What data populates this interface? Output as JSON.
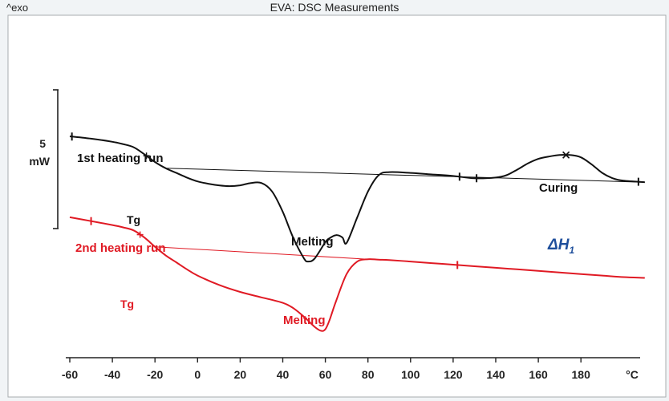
{
  "chart_data": {
    "type": "line",
    "title": "EVA: DSC Measurements",
    "corner_label": "^exo",
    "xlabel": "°C",
    "xlim": [
      -60,
      210
    ],
    "x_ticks": [
      -60,
      -40,
      -20,
      0,
      20,
      40,
      60,
      80,
      100,
      120,
      140,
      160,
      180
    ],
    "scale_bar": {
      "value": "5",
      "unit": "mW"
    },
    "series": [
      {
        "name": "1st heating run",
        "color": "#111111",
        "x": [
          -60,
          -50,
          -40,
          -35,
          -30,
          -25,
          -20,
          -15,
          -10,
          -5,
          0,
          5,
          10,
          15,
          20,
          25,
          30,
          35,
          40,
          45,
          50,
          52,
          55,
          60,
          62,
          65,
          68,
          70,
          75,
          80,
          85,
          90,
          100,
          110,
          120,
          130,
          140,
          145,
          150,
          155,
          160,
          165,
          170,
          175,
          180,
          185,
          190,
          195,
          200,
          210
        ],
        "y": [
          9.9,
          9.6,
          9.2,
          8.9,
          8.5,
          7.6,
          6.6,
          5.8,
          5.2,
          4.6,
          4.1,
          3.8,
          3.6,
          3.5,
          3.6,
          3.9,
          3.9,
          2.8,
          0.2,
          -3.2,
          -5.8,
          -6.2,
          -5.8,
          -3.7,
          -3.2,
          -2.8,
          -3.1,
          -3.8,
          -0.5,
          2.8,
          4.9,
          5.3,
          5.2,
          5.0,
          4.8,
          4.5,
          4.6,
          4.9,
          5.6,
          6.4,
          7.0,
          7.3,
          7.5,
          7.5,
          7.2,
          6.3,
          5.2,
          4.5,
          4.2,
          4.0
        ]
      },
      {
        "name": "2nd heating run",
        "color": "#e01a24",
        "x": [
          -60,
          -50,
          -40,
          -35,
          -30,
          -25,
          -20,
          -15,
          -10,
          -5,
          0,
          10,
          20,
          30,
          40,
          45,
          50,
          55,
          58,
          60,
          62,
          65,
          70,
          75,
          80,
          85,
          90,
          100,
          110,
          120,
          130,
          140,
          150,
          160,
          170,
          180,
          190,
          200,
          210
        ],
        "y": [
          -0.5,
          -1.0,
          -1.5,
          -1.8,
          -2.2,
          -3.1,
          -4.3,
          -5.4,
          -6.3,
          -7.2,
          -8.0,
          -9.2,
          -10.1,
          -10.8,
          -11.5,
          -12.2,
          -13.3,
          -14.6,
          -15.1,
          -14.9,
          -13.7,
          -11.3,
          -7.8,
          -6.2,
          -5.9,
          -5.95,
          -6.0,
          -6.2,
          -6.4,
          -6.6,
          -6.8,
          -7.0,
          -7.2,
          -7.4,
          -7.6,
          -7.8,
          -8.0,
          -8.2,
          -8.3
        ]
      }
    ],
    "baselines": [
      {
        "series": "1st heating run",
        "x": [
          -15,
          210
        ],
        "y": [
          5.8,
          4.0
        ]
      },
      {
        "series": "2nd heating run",
        "x": [
          -20,
          80
        ],
        "y": [
          -4.3,
          -5.9
        ]
      }
    ],
    "annotations": [
      {
        "text": "1st heating run",
        "color": "#111111"
      },
      {
        "text": "Tg",
        "color": "#111111"
      },
      {
        "text": "Melting",
        "color": "#111111"
      },
      {
        "text": "Curing",
        "color": "#111111"
      },
      {
        "text": "ΔH",
        "subscript": "1",
        "color": "#1f4f9c"
      },
      {
        "text": "2nd heating run",
        "color": "#e01a24"
      },
      {
        "text": "Tg",
        "color": "#e01a24"
      },
      {
        "text": "Melting",
        "color": "#e01a24"
      }
    ]
  }
}
